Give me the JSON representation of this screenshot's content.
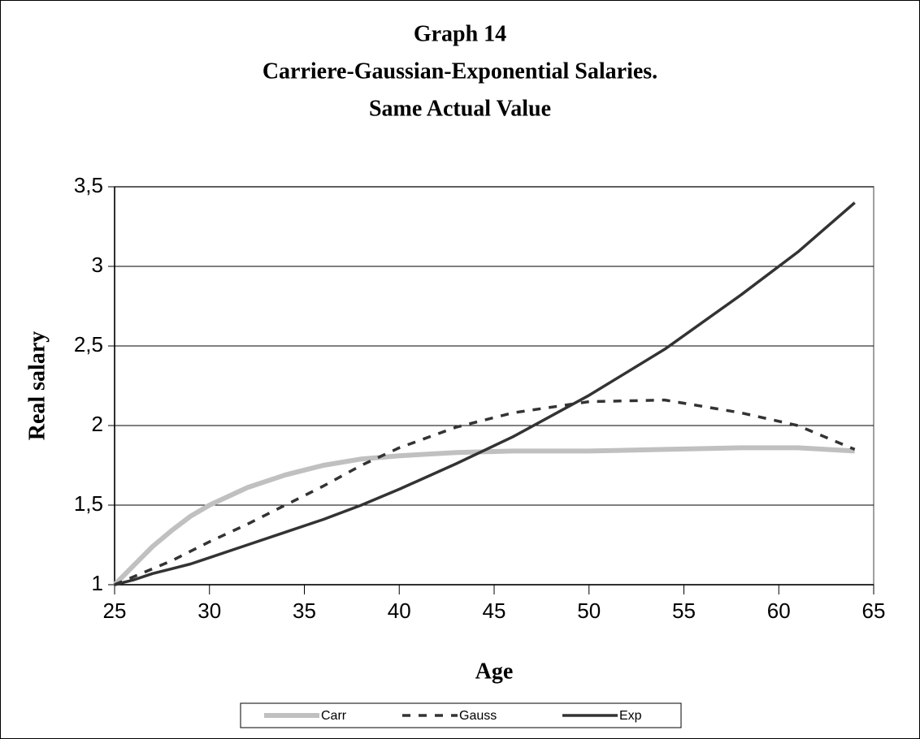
{
  "chart_data": {
    "type": "line",
    "title": [
      "Graph 14",
      "Carriere-Gaussian-Exponential Salaries.",
      "Same Actual Value"
    ],
    "x_label": "Age",
    "y_label": "Real salary",
    "x": [
      25,
      26,
      27,
      28,
      29,
      30,
      32,
      34,
      36,
      38,
      40,
      43,
      46,
      50,
      54,
      58,
      61,
      64
    ],
    "series": [
      {
        "name": "Carr",
        "color": "#c0c0c0",
        "values": [
          1.0,
          1.12,
          1.24,
          1.34,
          1.43,
          1.5,
          1.61,
          1.69,
          1.75,
          1.79,
          1.81,
          1.83,
          1.84,
          1.84,
          1.85,
          1.86,
          1.86,
          1.84
        ]
      },
      {
        "name": "Gauss",
        "color": "#333333",
        "dashed": true,
        "values": [
          1.0,
          1.05,
          1.1,
          1.15,
          1.21,
          1.27,
          1.38,
          1.5,
          1.62,
          1.75,
          1.86,
          1.99,
          2.08,
          2.15,
          2.16,
          2.08,
          2.0,
          1.85
        ]
      },
      {
        "name": "Exp",
        "color": "#333333",
        "values": [
          1.0,
          1.03,
          1.07,
          1.1,
          1.13,
          1.17,
          1.25,
          1.33,
          1.41,
          1.5,
          1.6,
          1.76,
          1.93,
          2.19,
          2.48,
          2.82,
          3.09,
          3.4
        ]
      }
    ],
    "xlim": [
      25,
      65
    ],
    "xticks": [
      25,
      30,
      35,
      40,
      45,
      50,
      55,
      60,
      65
    ],
    "ylim": [
      1,
      3.5
    ],
    "yticks": [
      1,
      {
        "value": 1.5,
        "label": "1,5"
      },
      2,
      {
        "value": 2.5,
        "label": "2,5"
      },
      3,
      {
        "value": 3.5,
        "label": "3,5"
      }
    ],
    "grid": true
  }
}
